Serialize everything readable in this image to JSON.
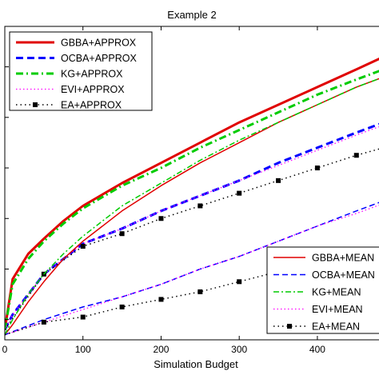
{
  "chart_data": {
    "type": "line",
    "title": "Example 2",
    "xlabel": "Simulation Budget",
    "ylabel": "",
    "xlim": [
      0,
      485
    ],
    "ylim": [
      0.36,
      0.98
    ],
    "x_ticks": [
      0,
      100,
      200,
      300,
      400
    ],
    "x_tick_labels": [
      "0",
      "100",
      "200",
      "300",
      "400"
    ],
    "y_ticks": [
      0.4,
      0.5,
      0.6,
      0.7,
      0.8,
      0.9
    ],
    "grid": false,
    "legends": [
      {
        "placement": "top-left",
        "entries": [
          "GBBA+APPROX",
          "OCBA+APPROX",
          "KG+APPROX",
          "EVI+APPROX",
          "EA+APPROX"
        ]
      },
      {
        "placement": "bottom-right",
        "entries": [
          "GBBA+MEAN",
          "OCBA+MEAN",
          "KG+MEAN",
          "EVI+MEAN",
          "EA+MEAN"
        ]
      }
    ],
    "series": [
      {
        "name": "GBBA+APPROX",
        "color": "#e00000",
        "style": "solid-thick",
        "x": [
          0,
          10,
          30,
          50,
          75,
          100,
          150,
          200,
          250,
          300,
          350,
          400,
          450,
          485
        ],
        "y": [
          0.38,
          0.48,
          0.53,
          0.56,
          0.595,
          0.625,
          0.67,
          0.71,
          0.75,
          0.79,
          0.825,
          0.86,
          0.895,
          0.92
        ]
      },
      {
        "name": "OCBA+APPROX",
        "color": "#0000ff",
        "style": "dashed-thick",
        "x": [
          0,
          10,
          30,
          50,
          100,
          150,
          200,
          250,
          300,
          350,
          400,
          450,
          485
        ],
        "y": [
          0.38,
          0.41,
          0.45,
          0.49,
          0.55,
          0.58,
          0.615,
          0.645,
          0.675,
          0.71,
          0.74,
          0.77,
          0.79
        ]
      },
      {
        "name": "KG+APPROX",
        "color": "#00cc00",
        "style": "dashdot-thick",
        "x": [
          0,
          10,
          30,
          50,
          75,
          100,
          150,
          200,
          250,
          300,
          350,
          400,
          450,
          485
        ],
        "y": [
          0.38,
          0.47,
          0.52,
          0.555,
          0.59,
          0.62,
          0.665,
          0.7,
          0.74,
          0.775,
          0.81,
          0.845,
          0.875,
          0.895
        ]
      },
      {
        "name": "EVI+APPROX",
        "color": "#ff00ff",
        "style": "dotted",
        "x": [
          0,
          10,
          30,
          50,
          100,
          150,
          200,
          250,
          300,
          350,
          400,
          450,
          485
        ],
        "y": [
          0.38,
          0.41,
          0.45,
          0.49,
          0.55,
          0.58,
          0.615,
          0.645,
          0.675,
          0.705,
          0.735,
          0.765,
          0.785
        ]
      },
      {
        "name": "EA+APPROX",
        "color": "#000000",
        "style": "dotted-markers",
        "x": [
          0,
          50,
          100,
          150,
          200,
          250,
          300,
          350,
          400,
          450,
          485
        ],
        "y": [
          0.38,
          0.49,
          0.545,
          0.57,
          0.6,
          0.625,
          0.65,
          0.675,
          0.7,
          0.725,
          0.74
        ]
      },
      {
        "name": "GBBA+MEAN",
        "color": "#e00000",
        "style": "solid",
        "x": [
          0,
          10,
          30,
          50,
          75,
          100,
          150,
          200,
          250,
          300,
          350,
          400,
          450,
          485
        ],
        "y": [
          0.37,
          0.39,
          0.435,
          0.475,
          0.52,
          0.555,
          0.615,
          0.665,
          0.71,
          0.75,
          0.79,
          0.825,
          0.86,
          0.88
        ]
      },
      {
        "name": "OCBA+MEAN",
        "color": "#0000ff",
        "style": "dashed",
        "x": [
          0,
          50,
          100,
          150,
          200,
          250,
          300,
          350,
          400,
          450,
          485
        ],
        "y": [
          0.37,
          0.4,
          0.425,
          0.445,
          0.47,
          0.5,
          0.525,
          0.555,
          0.585,
          0.615,
          0.635
        ]
      },
      {
        "name": "KG+MEAN",
        "color": "#00cc00",
        "style": "dashdot",
        "x": [
          0,
          10,
          30,
          50,
          75,
          100,
          150,
          200,
          250,
          300,
          350,
          400,
          450,
          485
        ],
        "y": [
          0.37,
          0.4,
          0.45,
          0.49,
          0.53,
          0.565,
          0.625,
          0.67,
          0.715,
          0.755,
          0.79,
          0.825,
          0.86,
          0.88
        ]
      },
      {
        "name": "EVI+MEAN",
        "color": "#ff00ff",
        "style": "dotted",
        "x": [
          0,
          50,
          100,
          150,
          200,
          250,
          300,
          350,
          400,
          450,
          485
        ],
        "y": [
          0.37,
          0.395,
          0.42,
          0.445,
          0.47,
          0.5,
          0.525,
          0.555,
          0.585,
          0.61,
          0.63
        ]
      },
      {
        "name": "EA+MEAN",
        "color": "#000000",
        "style": "dotted-markers",
        "x": [
          0,
          50,
          100,
          150,
          200,
          250,
          300,
          350,
          400,
          450,
          485
        ],
        "y": [
          0.37,
          0.395,
          0.405,
          0.425,
          0.44,
          0.455,
          0.475,
          0.495,
          0.51,
          0.53,
          0.545
        ]
      }
    ]
  }
}
